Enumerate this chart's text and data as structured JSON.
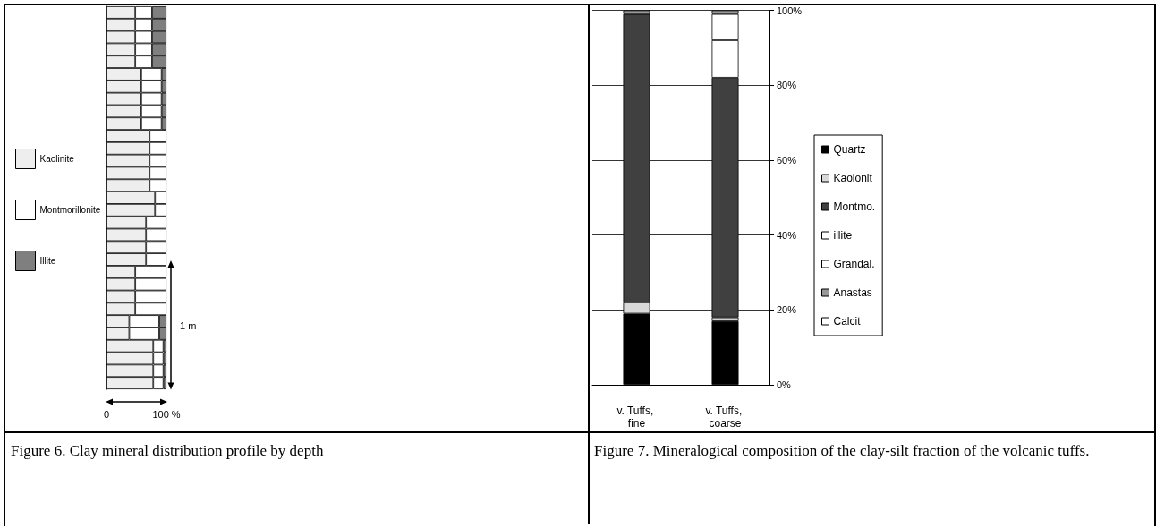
{
  "chart_data": [
    {
      "type": "bar",
      "title": "Figure 6. Clay mineral distribution profile by depth",
      "orientation": "horizontal",
      "stacked": true,
      "legend": "left",
      "annotations": [
        "1 m"
      ],
      "categories": [
        null,
        null,
        null,
        null,
        null,
        null,
        null,
        null,
        null,
        null,
        null,
        null,
        null,
        null,
        null,
        null,
        null,
        null,
        null,
        null,
        null,
        null,
        null,
        null,
        null,
        null,
        null,
        null,
        null,
        null,
        null
      ],
      "xlim": [
        0,
        100
      ],
      "xticks": [
        0,
        {
          "value": 100,
          "label": "100 %"
        }
      ],
      "series": [
        {
          "name": "Kaolinite",
          "color": "#eeeeee",
          "values": [
            48,
            48,
            48,
            48,
            48,
            58,
            58,
            58,
            58,
            58,
            72,
            72,
            72,
            72,
            72,
            81,
            81,
            66,
            66,
            66,
            66,
            48,
            48,
            48,
            48,
            38,
            38,
            78,
            78,
            78,
            78
          ]
        },
        {
          "name": "Montmorillonite",
          "color": "#ffffff",
          "values": [
            28,
            28,
            28,
            28,
            28,
            34,
            34,
            34,
            34,
            34,
            28,
            28,
            28,
            28,
            28,
            19,
            19,
            34,
            34,
            34,
            34,
            52,
            52,
            52,
            52,
            50,
            50,
            17,
            17,
            17,
            17
          ]
        },
        {
          "name": "Illite",
          "color": "#7f7f7f",
          "values": [
            24,
            24,
            24,
            24,
            24,
            8,
            8,
            8,
            8,
            8,
            0,
            0,
            0,
            0,
            0,
            0,
            0,
            0,
            0,
            0,
            0,
            0,
            0,
            0,
            0,
            12,
            12,
            5,
            5,
            5,
            5
          ]
        }
      ]
    },
    {
      "type": "bar",
      "title": "Figure 7. Mineralogical composition of the clay-silt fraction of the volcanic tuffs.",
      "stacked": true,
      "legend": "right",
      "grid": "y",
      "categories": [
        "v. Tuffs, fine",
        "v. Tuffs, coarse"
      ],
      "ylim": [
        0,
        100
      ],
      "yticks": [
        {
          "value": 0,
          "label": "0%"
        },
        {
          "value": 20,
          "label": "20%"
        },
        {
          "value": 40,
          "label": "40%"
        },
        {
          "value": 60,
          "label": "60%"
        },
        {
          "value": 80,
          "label": "80%"
        },
        {
          "value": 100,
          "label": "100%"
        }
      ],
      "series": [
        {
          "name": "Quartz",
          "color": "#000000",
          "values": [
            19,
            17
          ]
        },
        {
          "name": "Kaolonit",
          "color": "#d9d9d9",
          "values": [
            3,
            1
          ]
        },
        {
          "name": "Montmo.",
          "color": "#404040",
          "values": [
            77,
            64
          ]
        },
        {
          "name": "illite",
          "color": "#ffffff",
          "values": [
            0,
            10
          ]
        },
        {
          "name": "Grandal.",
          "color": "#ffffff",
          "values": [
            0,
            7
          ]
        },
        {
          "name": "Anastas",
          "color": "#999999",
          "values": [
            1,
            1
          ]
        },
        {
          "name": "Calcit",
          "color": "#ffffff",
          "values": [
            0,
            0
          ]
        }
      ]
    }
  ]
}
